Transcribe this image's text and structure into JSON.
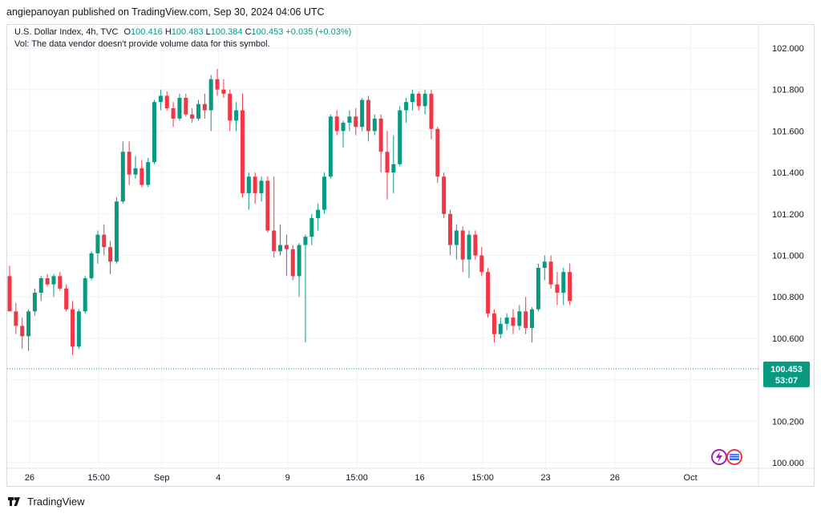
{
  "header": {
    "published_text": "angiepanoyan published on TradingView.com, Sep 30, 2024 04:06 UTC"
  },
  "legend": {
    "symbol": "U.S. Dollar Index, 4h, TVC",
    "open_label": "O",
    "open_value": "100.416",
    "high_label": "H",
    "high_value": "100.483",
    "low_label": "L",
    "low_value": "100.384",
    "close_label": "C",
    "close_value": "100.453",
    "change": "+0.035 (+0.03%)",
    "vol_note": "Vol: The data vendor doesn't provide volume data for this symbol."
  },
  "price_badge": {
    "price": "100.453",
    "countdown": "53:07"
  },
  "footer": {
    "brand": "TradingView"
  },
  "colors": {
    "up": "#089981",
    "down": "#f23645",
    "grid": "#f0f3fa",
    "text": "#131722"
  },
  "chart_data": {
    "type": "candlestick",
    "symbol": "U.S. Dollar Index",
    "interval": "4h",
    "ylim": [
      100.0,
      102.0
    ],
    "y_ticks": [
      "102.000",
      "101.800",
      "101.600",
      "101.400",
      "101.200",
      "101.000",
      "100.800",
      "100.600",
      "100.400",
      "100.200",
      "100.000"
    ],
    "x_ticks": [
      {
        "label": "26",
        "i": 1
      },
      {
        "label": "15:00",
        "i": 12
      },
      {
        "label": "Sep",
        "i": 22
      },
      {
        "label": "4",
        "i": 31
      },
      {
        "label": "9",
        "i": 42
      },
      {
        "label": "15:00",
        "i": 53
      },
      {
        "label": "16",
        "i": 63
      },
      {
        "label": "15:00",
        "i": 73
      },
      {
        "label": "23",
        "i": 83
      },
      {
        "label": "26",
        "i": 94
      },
      {
        "label": "Oct",
        "i": 106
      }
    ],
    "last_price": 100.453,
    "candles": [
      {
        "o": 100.9,
        "h": 100.95,
        "l": 100.74,
        "c": 100.73
      },
      {
        "o": 100.73,
        "h": 100.77,
        "l": 100.62,
        "c": 100.66
      },
      {
        "o": 100.66,
        "h": 100.7,
        "l": 100.55,
        "c": 100.61
      },
      {
        "o": 100.61,
        "h": 100.74,
        "l": 100.54,
        "c": 100.73
      },
      {
        "o": 100.73,
        "h": 100.84,
        "l": 100.71,
        "c": 100.82
      },
      {
        "o": 100.82,
        "h": 100.9,
        "l": 100.78,
        "c": 100.89
      },
      {
        "o": 100.89,
        "h": 100.91,
        "l": 100.85,
        "c": 100.86
      },
      {
        "o": 100.86,
        "h": 100.91,
        "l": 100.8,
        "c": 100.9
      },
      {
        "o": 100.9,
        "h": 100.92,
        "l": 100.83,
        "c": 100.84
      },
      {
        "o": 100.84,
        "h": 100.86,
        "l": 100.73,
        "c": 100.74
      },
      {
        "o": 100.74,
        "h": 100.78,
        "l": 100.52,
        "c": 100.56
      },
      {
        "o": 100.56,
        "h": 100.74,
        "l": 100.55,
        "c": 100.73
      },
      {
        "o": 100.73,
        "h": 100.9,
        "l": 100.72,
        "c": 100.89
      },
      {
        "o": 100.89,
        "h": 101.02,
        "l": 100.88,
        "c": 101.01
      },
      {
        "o": 101.01,
        "h": 101.12,
        "l": 100.96,
        "c": 101.1
      },
      {
        "o": 101.1,
        "h": 101.15,
        "l": 101.0,
        "c": 101.04
      },
      {
        "o": 101.04,
        "h": 101.07,
        "l": 100.91,
        "c": 100.97
      },
      {
        "o": 100.97,
        "h": 101.28,
        "l": 100.96,
        "c": 101.26
      },
      {
        "o": 101.26,
        "h": 101.55,
        "l": 101.25,
        "c": 101.5
      },
      {
        "o": 101.5,
        "h": 101.55,
        "l": 101.34,
        "c": 101.39
      },
      {
        "o": 101.39,
        "h": 101.48,
        "l": 101.37,
        "c": 101.42
      },
      {
        "o": 101.42,
        "h": 101.46,
        "l": 101.33,
        "c": 101.34
      },
      {
        "o": 101.34,
        "h": 101.47,
        "l": 101.33,
        "c": 101.45
      },
      {
        "o": 101.45,
        "h": 101.75,
        "l": 101.44,
        "c": 101.74
      },
      {
        "o": 101.74,
        "h": 101.8,
        "l": 101.7,
        "c": 101.77
      },
      {
        "o": 101.77,
        "h": 101.79,
        "l": 101.7,
        "c": 101.71
      },
      {
        "o": 101.71,
        "h": 101.74,
        "l": 101.62,
        "c": 101.66
      },
      {
        "o": 101.66,
        "h": 101.78,
        "l": 101.65,
        "c": 101.76
      },
      {
        "o": 101.76,
        "h": 101.78,
        "l": 101.67,
        "c": 101.68
      },
      {
        "o": 101.68,
        "h": 101.71,
        "l": 101.64,
        "c": 101.66
      },
      {
        "o": 101.66,
        "h": 101.75,
        "l": 101.65,
        "c": 101.73
      },
      {
        "o": 101.73,
        "h": 101.78,
        "l": 101.66,
        "c": 101.7
      },
      {
        "o": 101.7,
        "h": 101.87,
        "l": 101.6,
        "c": 101.85
      },
      {
        "o": 101.85,
        "h": 101.9,
        "l": 101.77,
        "c": 101.8
      },
      {
        "o": 101.8,
        "h": 101.85,
        "l": 101.76,
        "c": 101.78
      },
      {
        "o": 101.78,
        "h": 101.8,
        "l": 101.6,
        "c": 101.65
      },
      {
        "o": 101.65,
        "h": 101.74,
        "l": 101.6,
        "c": 101.7
      },
      {
        "o": 101.7,
        "h": 101.78,
        "l": 101.28,
        "c": 101.3
      },
      {
        "o": 101.3,
        "h": 101.4,
        "l": 101.22,
        "c": 101.38
      },
      {
        "o": 101.38,
        "h": 101.4,
        "l": 101.25,
        "c": 101.3
      },
      {
        "o": 101.3,
        "h": 101.38,
        "l": 101.26,
        "c": 101.36
      },
      {
        "o": 101.36,
        "h": 101.38,
        "l": 101.11,
        "c": 101.12
      },
      {
        "o": 101.12,
        "h": 101.38,
        "l": 100.99,
        "c": 101.02
      },
      {
        "o": 101.02,
        "h": 101.15,
        "l": 101.0,
        "c": 101.05
      },
      {
        "o": 101.05,
        "h": 101.1,
        "l": 100.9,
        "c": 101.03
      },
      {
        "o": 101.03,
        "h": 101.05,
        "l": 100.88,
        "c": 100.9
      },
      {
        "o": 100.9,
        "h": 101.06,
        "l": 100.8,
        "c": 101.05
      },
      {
        "o": 101.05,
        "h": 101.1,
        "l": 100.58,
        "c": 101.09
      },
      {
        "o": 101.09,
        "h": 101.2,
        "l": 101.05,
        "c": 101.18
      },
      {
        "o": 101.18,
        "h": 101.25,
        "l": 101.12,
        "c": 101.22
      },
      {
        "o": 101.22,
        "h": 101.4,
        "l": 101.2,
        "c": 101.38
      },
      {
        "o": 101.38,
        "h": 101.68,
        "l": 101.37,
        "c": 101.67
      },
      {
        "o": 101.67,
        "h": 101.7,
        "l": 101.58,
        "c": 101.6
      },
      {
        "o": 101.6,
        "h": 101.65,
        "l": 101.52,
        "c": 101.64
      },
      {
        "o": 101.64,
        "h": 101.7,
        "l": 101.6,
        "c": 101.67
      },
      {
        "o": 101.67,
        "h": 101.71,
        "l": 101.58,
        "c": 101.62
      },
      {
        "o": 101.62,
        "h": 101.76,
        "l": 101.6,
        "c": 101.75
      },
      {
        "o": 101.75,
        "h": 101.77,
        "l": 101.55,
        "c": 101.6
      },
      {
        "o": 101.6,
        "h": 101.68,
        "l": 101.58,
        "c": 101.66
      },
      {
        "o": 101.66,
        "h": 101.68,
        "l": 101.4,
        "c": 101.5
      },
      {
        "o": 101.5,
        "h": 101.6,
        "l": 101.27,
        "c": 101.4
      },
      {
        "o": 101.4,
        "h": 101.58,
        "l": 101.3,
        "c": 101.44
      },
      {
        "o": 101.44,
        "h": 101.72,
        "l": 101.43,
        "c": 101.7
      },
      {
        "o": 101.7,
        "h": 101.76,
        "l": 101.64,
        "c": 101.74
      },
      {
        "o": 101.74,
        "h": 101.8,
        "l": 101.7,
        "c": 101.78
      },
      {
        "o": 101.78,
        "h": 101.79,
        "l": 101.7,
        "c": 101.72
      },
      {
        "o": 101.72,
        "h": 101.8,
        "l": 101.68,
        "c": 101.78
      },
      {
        "o": 101.78,
        "h": 101.8,
        "l": 101.56,
        "c": 101.61
      },
      {
        "o": 101.61,
        "h": 101.62,
        "l": 101.35,
        "c": 101.38
      },
      {
        "o": 101.38,
        "h": 101.4,
        "l": 101.18,
        "c": 101.2
      },
      {
        "o": 101.2,
        "h": 101.22,
        "l": 101.0,
        "c": 101.05
      },
      {
        "o": 101.05,
        "h": 101.15,
        "l": 100.98,
        "c": 101.12
      },
      {
        "o": 101.12,
        "h": 101.14,
        "l": 100.92,
        "c": 100.98
      },
      {
        "o": 100.98,
        "h": 101.12,
        "l": 100.89,
        "c": 101.1
      },
      {
        "o": 101.1,
        "h": 101.12,
        "l": 100.98,
        "c": 101.0
      },
      {
        "o": 101.0,
        "h": 101.04,
        "l": 100.9,
        "c": 100.92
      },
      {
        "o": 100.92,
        "h": 100.94,
        "l": 100.7,
        "c": 100.72
      },
      {
        "o": 100.72,
        "h": 100.74,
        "l": 100.58,
        "c": 100.62
      },
      {
        "o": 100.62,
        "h": 100.7,
        "l": 100.6,
        "c": 100.67
      },
      {
        "o": 100.67,
        "h": 100.72,
        "l": 100.64,
        "c": 100.7
      },
      {
        "o": 100.7,
        "h": 100.74,
        "l": 100.62,
        "c": 100.66
      },
      {
        "o": 100.66,
        "h": 100.76,
        "l": 100.64,
        "c": 100.73
      },
      {
        "o": 100.73,
        "h": 100.8,
        "l": 100.62,
        "c": 100.65
      },
      {
        "o": 100.65,
        "h": 100.75,
        "l": 100.58,
        "c": 100.74
      },
      {
        "o": 100.74,
        "h": 100.96,
        "l": 100.73,
        "c": 100.94
      },
      {
        "o": 100.94,
        "h": 101.0,
        "l": 100.88,
        "c": 100.97
      },
      {
        "o": 100.97,
        "h": 101.0,
        "l": 100.84,
        "c": 100.86
      },
      {
        "o": 100.86,
        "h": 100.92,
        "l": 100.76,
        "c": 100.82
      },
      {
        "o": 100.82,
        "h": 100.94,
        "l": 100.76,
        "c": 100.92
      },
      {
        "o": 100.92,
        "h": 100.96,
        "l": 100.76,
        "c": 100.78
      }
    ]
  }
}
